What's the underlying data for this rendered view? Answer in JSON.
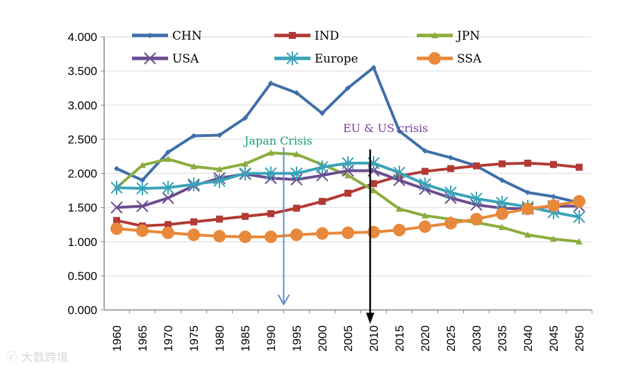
{
  "chart_data": {
    "type": "line",
    "title": "",
    "xlabel": "",
    "ylabel": "",
    "ylim": [
      0,
      4
    ],
    "yticks": [
      "0.000",
      "0.500",
      "1.000",
      "1.500",
      "2.000",
      "2.500",
      "3.000",
      "3.500",
      "4.000"
    ],
    "ytick_values": [
      0,
      0.5,
      1,
      1.5,
      2,
      2.5,
      3,
      3.5,
      4
    ],
    "grid": true,
    "legend_placement": "top",
    "x": [
      1960,
      1965,
      1970,
      1975,
      1980,
      1985,
      1990,
      1995,
      2000,
      2005,
      2010,
      2015,
      2020,
      2025,
      2030,
      2035,
      2040,
      2045,
      2050
    ],
    "series": [
      {
        "name": "CHN",
        "color": "#3f6fa8",
        "marker": "diamond",
        "values": [
          2.07,
          1.9,
          2.31,
          2.55,
          2.56,
          2.81,
          3.32,
          3.18,
          2.88,
          3.25,
          3.55,
          2.62,
          2.33,
          2.23,
          2.11,
          1.9,
          1.72,
          1.66,
          1.57
        ]
      },
      {
        "name": "IND",
        "color": "#b23a34",
        "marker": "square",
        "values": [
          1.31,
          1.23,
          1.25,
          1.29,
          1.33,
          1.37,
          1.41,
          1.49,
          1.59,
          1.71,
          1.85,
          1.96,
          2.03,
          2.07,
          2.11,
          2.14,
          2.15,
          2.13,
          2.09
        ]
      },
      {
        "name": "JPN",
        "color": "#8cad3e",
        "marker": "triangle",
        "values": [
          1.79,
          2.12,
          2.21,
          2.1,
          2.06,
          2.14,
          2.3,
          2.28,
          2.13,
          1.97,
          1.75,
          1.48,
          1.38,
          1.33,
          1.28,
          1.21,
          1.1,
          1.04,
          1.0
        ]
      },
      {
        "name": "USA",
        "color": "#6b4b8f",
        "marker": "x",
        "values": [
          1.5,
          1.52,
          1.64,
          1.82,
          1.93,
          1.99,
          1.93,
          1.91,
          1.97,
          2.04,
          2.04,
          1.9,
          1.77,
          1.64,
          1.54,
          1.49,
          1.48,
          1.52,
          1.52
        ]
      },
      {
        "name": "Europe",
        "color": "#3aa3b8",
        "marker": "star",
        "values": [
          1.79,
          1.78,
          1.79,
          1.84,
          1.89,
          2.0,
          2.0,
          2.0,
          2.09,
          2.15,
          2.15,
          2.01,
          1.84,
          1.72,
          1.63,
          1.57,
          1.51,
          1.43,
          1.36
        ]
      },
      {
        "name": "SSA",
        "color": "#e8883a",
        "marker": "circle",
        "values": [
          1.19,
          1.16,
          1.13,
          1.1,
          1.08,
          1.07,
          1.07,
          1.1,
          1.12,
          1.13,
          1.14,
          1.17,
          1.22,
          1.27,
          1.33,
          1.41,
          1.48,
          1.53,
          1.59
        ]
      }
    ],
    "annotations": [
      {
        "text": "Japan Crisis",
        "color": "#1aa36a",
        "arrow_color": "#5a8fd0",
        "x": 1992.5,
        "y": 2.5
      },
      {
        "text": "EU & US crisis",
        "color": "#7a3fa0",
        "arrow_color": "#000000",
        "x": 2009.5,
        "y": 2.65
      }
    ]
  },
  "watermark": "大数跨境"
}
